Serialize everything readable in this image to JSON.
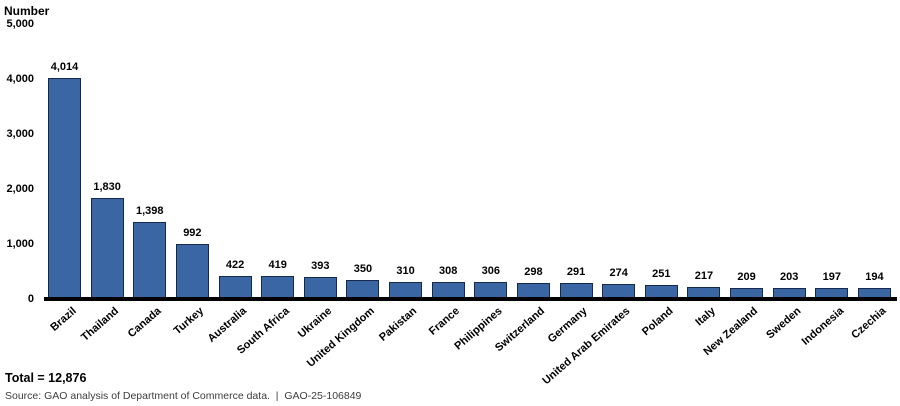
{
  "chart": {
    "y_axis_title": "Number"
  },
  "chart_data": {
    "type": "bar",
    "title": "",
    "xlabel": "",
    "ylabel": "Number",
    "ylim": [
      0,
      5000
    ],
    "grid": false,
    "legend": false,
    "categories": [
      "Brazil",
      "Thailand",
      "Canada",
      "Turkey",
      "Australia",
      "South Africa",
      "Ukraine",
      "United Kingdom",
      "Pakistan",
      "France",
      "Philippines",
      "Switzerland",
      "Germany",
      "United Arab Emirates",
      "Poland",
      "Italy",
      "New Zealand",
      "Sweden",
      "Indonesia",
      "Czechia"
    ],
    "values": [
      4014,
      1830,
      1398,
      992,
      422,
      419,
      393,
      350,
      310,
      308,
      306,
      298,
      291,
      274,
      251,
      217,
      209,
      203,
      197,
      194
    ],
    "value_labels": [
      "4,014",
      "1,830",
      "1,398",
      "992",
      "422",
      "419",
      "393",
      "350",
      "310",
      "308",
      "306",
      "298",
      "291",
      "274",
      "251",
      "217",
      "209",
      "203",
      "197",
      "194"
    ],
    "y_ticks": [
      {
        "label": "5,000",
        "value": 5000
      },
      {
        "label": "4,000",
        "value": 4000
      },
      {
        "label": "3,000",
        "value": 3000
      },
      {
        "label": "2,000",
        "value": 2000
      },
      {
        "label": "1,000",
        "value": 1000
      },
      {
        "label": "0",
        "value": 0
      }
    ],
    "total": 12876,
    "colors": {
      "bar_fill": "#3A66A4",
      "bar_border": "#17294A",
      "axis": "#000000"
    }
  },
  "footer": {
    "total_label": "Total = 12,876",
    "source_text": "Source: GAO analysis of Department of Commerce data.  |  GAO-25-106849"
  }
}
